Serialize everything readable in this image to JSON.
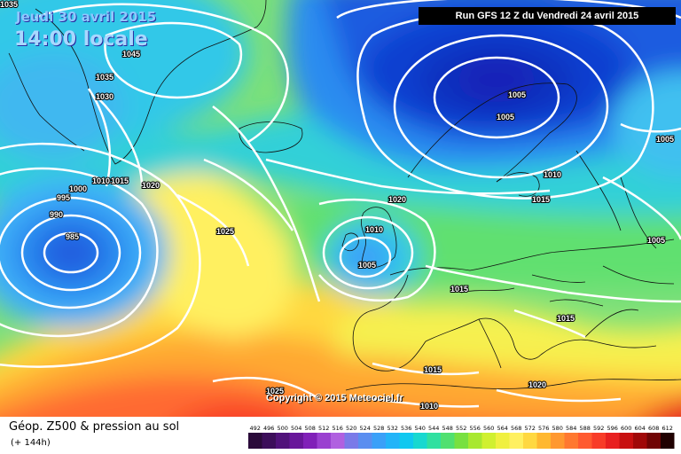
{
  "header": {
    "date": "Jeudi 30 avril 2015",
    "time": "14:00 locale",
    "run": "Run GFS 12 Z du Vendredi 24 avril 2015"
  },
  "copyright": "Copyright © 2015 Meteociel.fr",
  "footer": {
    "title": "Géop. Z500 & pression au sol",
    "subtitle": "(+ 144h)"
  },
  "legend": {
    "values": [
      "492",
      "496",
      "500",
      "504",
      "508",
      "512",
      "516",
      "520",
      "524",
      "528",
      "532",
      "536",
      "540",
      "544",
      "548",
      "552",
      "556",
      "560",
      "564",
      "568",
      "572",
      "576",
      "580",
      "584",
      "588",
      "592",
      "596",
      "600",
      "604",
      "608",
      "612"
    ],
    "colors": [
      "#2a0a3a",
      "#3c0e5a",
      "#50127a",
      "#68169a",
      "#8020b8",
      "#9a40d0",
      "#b060e0",
      "#7a7ae8",
      "#5a8ef0",
      "#3aa0f8",
      "#22b4f8",
      "#10c8f0",
      "#18d8d0",
      "#30e0a0",
      "#50e070",
      "#78e040",
      "#a8e830",
      "#d0f030",
      "#f0f040",
      "#fff060",
      "#ffd840",
      "#ffb830",
      "#ff9830",
      "#ff7830",
      "#ff5a30",
      "#f83c28",
      "#e82020",
      "#c81010",
      "#a00808",
      "#700404",
      "#200000"
    ]
  },
  "isobar_labels": [
    {
      "text": "1035"
    },
    {
      "text": "1045"
    },
    {
      "text": "1035"
    },
    {
      "text": "1030"
    },
    {
      "text": "1020"
    },
    {
      "text": "1015"
    },
    {
      "text": "1010"
    },
    {
      "text": "1000"
    },
    {
      "text": "995"
    },
    {
      "text": "990"
    },
    {
      "text": "985"
    },
    {
      "text": "1025"
    },
    {
      "text": "1020"
    },
    {
      "text": "1010"
    },
    {
      "text": "1005"
    },
    {
      "text": "1005"
    },
    {
      "text": "1005"
    },
    {
      "text": "1010"
    },
    {
      "text": "1015"
    },
    {
      "text": "1005"
    },
    {
      "text": "1005"
    },
    {
      "text": "1015"
    },
    {
      "text": "1015"
    },
    {
      "text": "1015"
    },
    {
      "text": "1020"
    },
    {
      "text": "1025"
    },
    {
      "text": "1010"
    }
  ]
}
